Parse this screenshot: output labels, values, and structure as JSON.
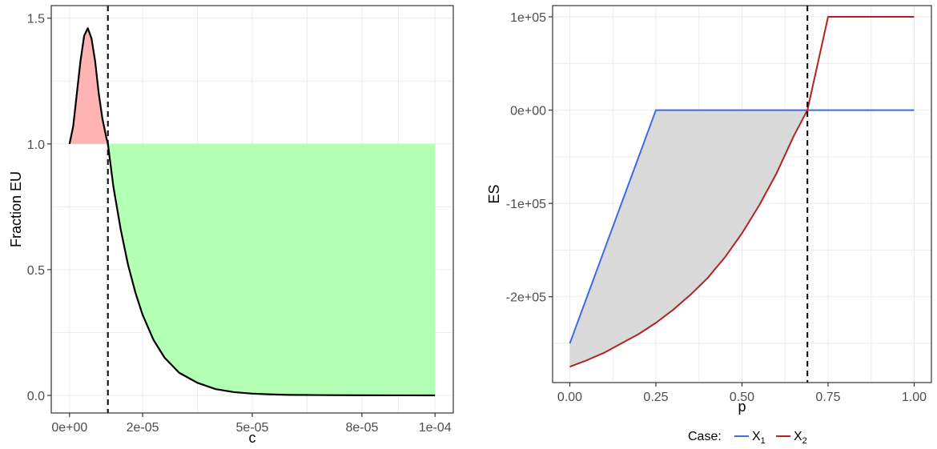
{
  "chart_data": [
    {
      "type": "area",
      "xlabel": "c",
      "ylabel": "Fraction EU",
      "xlim": [
        -5e-06,
        0.000105
      ],
      "ylim": [
        -0.07,
        1.55
      ],
      "x_ticks": [
        0,
        2e-05,
        5e-05,
        8e-05,
        0.0001
      ],
      "x_tick_labels": [
        "0e+00",
        "2e-05",
        "5e-05",
        "8e-05",
        "1e-04"
      ],
      "y_ticks": [
        0,
        0.5,
        1,
        1.5
      ],
      "y_tick_labels": [
        "0.0",
        "0.5",
        "1.0",
        "1.5"
      ],
      "vline_x": 1.05e-05,
      "reference_y": 1.0,
      "curve": {
        "x": [
          0,
          1e-06,
          2e-06,
          3e-06,
          4e-06,
          5e-06,
          6e-06,
          7e-06,
          8e-06,
          9e-06,
          1e-05,
          1.05e-05,
          1.2e-05,
          1.4e-05,
          1.6e-05,
          1.8e-05,
          2e-05,
          2.3e-05,
          2.6e-05,
          3e-05,
          3.5e-05,
          4e-05,
          4.5e-05,
          5e-05,
          5.5e-05,
          6e-05,
          7e-05,
          8e-05,
          9e-05,
          0.0001
        ],
        "y": [
          1.0,
          1.07,
          1.2,
          1.33,
          1.43,
          1.46,
          1.42,
          1.33,
          1.2,
          1.1,
          1.03,
          1.0,
          0.83,
          0.66,
          0.52,
          0.41,
          0.32,
          0.22,
          0.15,
          0.09,
          0.05,
          0.025,
          0.013,
          0.007,
          0.004,
          0.002,
          0.001,
          0.0005,
          0.0002,
          0.0001
        ]
      },
      "fill_above_color": "#ffb3b3",
      "fill_below_color": "#b3ffb3",
      "line_color": "#000000"
    },
    {
      "type": "line",
      "xlabel": "p",
      "ylabel": "ES",
      "xlim": [
        -0.05,
        1.05
      ],
      "ylim": [
        -292000,
        112000
      ],
      "x_ticks": [
        0,
        0.25,
        0.5,
        0.75,
        1
      ],
      "x_tick_labels": [
        "0.00",
        "0.25",
        "0.50",
        "0.75",
        "1.00"
      ],
      "y_ticks": [
        100000,
        0,
        -100000,
        -200000
      ],
      "y_tick_labels": [
        "1e+05",
        "0e+00",
        "-1e+05",
        "-2e+05"
      ],
      "vline_x": 0.69,
      "legend": {
        "title": "Case:",
        "position": "bottom",
        "entries": [
          {
            "label": "X",
            "subscript": "1",
            "color": "#4169e1"
          },
          {
            "label": "X",
            "subscript": "2",
            "color": "#b22222"
          }
        ]
      },
      "series": [
        {
          "color": "#4169e1",
          "x": [
            0,
            0.05,
            0.1,
            0.15,
            0.2,
            0.25,
            0.3,
            0.4,
            0.5,
            0.6,
            0.69,
            0.75,
            0.8,
            0.9,
            1.0
          ],
          "y": [
            -250000,
            -200000,
            -150000,
            -100000,
            -50000,
            0,
            0,
            0,
            0,
            0,
            0,
            0,
            0,
            0,
            0
          ]
        },
        {
          "color": "#b22222",
          "x": [
            0,
            0.05,
            0.1,
            0.15,
            0.2,
            0.25,
            0.3,
            0.35,
            0.4,
            0.45,
            0.5,
            0.55,
            0.6,
            0.65,
            0.69,
            0.72,
            0.75,
            0.8,
            0.9,
            1.0
          ],
          "y": [
            -275000,
            -268000,
            -260000,
            -250000,
            -240000,
            -228000,
            -214000,
            -198000,
            -180000,
            -158000,
            -132000,
            -102000,
            -68000,
            -28000,
            0,
            50000,
            100000,
            100000,
            100000,
            100000
          ]
        }
      ],
      "shade_color": "#d9d9d9"
    }
  ]
}
